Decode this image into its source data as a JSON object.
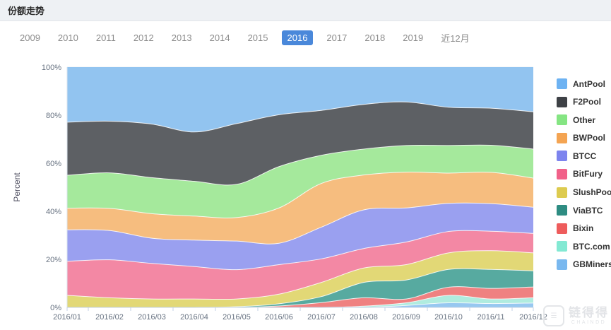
{
  "header": {
    "title": "份额走势"
  },
  "tabs": {
    "items": [
      "2009",
      "2010",
      "2011",
      "2012",
      "2013",
      "2014",
      "2015",
      "2016",
      "2017",
      "2018",
      "2019",
      "近12月"
    ],
    "selected": "2016"
  },
  "chart_data": {
    "type": "area",
    "stacked": true,
    "title": "份额走势",
    "xlabel": "",
    "ylabel": "Percent",
    "ylim": [
      0,
      100
    ],
    "ytick_labels": [
      "0%",
      "20%",
      "40%",
      "60%",
      "80%",
      "100%"
    ],
    "grid": true,
    "legend_position": "right",
    "x": [
      "2016/01",
      "2016/02",
      "2016/03",
      "2016/04",
      "2016/05",
      "2016/06",
      "2016/07",
      "2016/08",
      "2016/09",
      "2016/10",
      "2016/11",
      "2016/12"
    ],
    "series": [
      {
        "name": "AntPool",
        "color": "#6db2f2",
        "fill": "#92c4f0",
        "values": [
          22.9,
          22.5,
          23.7,
          27.0,
          23.5,
          19.8,
          18.0,
          15.5,
          14.5,
          16.7,
          17.1,
          18.6
        ]
      },
      {
        "name": "F2Pool",
        "color": "#3e4146",
        "fill": "#5d6064",
        "values": [
          22.1,
          21.5,
          22.3,
          20.5,
          25.3,
          21.6,
          18.7,
          18.6,
          18.1,
          15.9,
          15.4,
          15.5
        ]
      },
      {
        "name": "Other",
        "color": "#85e583",
        "fill": "#a5e99c",
        "values": [
          13.7,
          14.8,
          15.0,
          14.5,
          13.8,
          17.2,
          11.7,
          10.8,
          11.1,
          11.5,
          11.3,
          12.1
        ]
      },
      {
        "name": "BWPool",
        "color": "#f4a452",
        "fill": "#f6bd7f",
        "values": [
          9.0,
          9.2,
          10.2,
          10.0,
          9.8,
          14.7,
          18.2,
          14.5,
          14.9,
          12.6,
          13.0,
          12.1
        ]
      },
      {
        "name": "BTCC",
        "color": "#7d84ee",
        "fill": "#9aa0f0",
        "values": [
          13.1,
          12.2,
          10.5,
          11.0,
          11.9,
          8.9,
          13.2,
          16.1,
          14.2,
          11.7,
          11.5,
          10.9
        ]
      },
      {
        "name": "BitFury",
        "color": "#f16189",
        "fill": "#f388a4",
        "values": [
          14.2,
          15.8,
          14.8,
          13.5,
          12.2,
          12.3,
          9.8,
          8.1,
          9.4,
          8.9,
          8.1,
          8.1
        ]
      },
      {
        "name": "SlushPool",
        "color": "#ddcb4f",
        "fill": "#e2d876",
        "values": [
          5.0,
          4.0,
          3.5,
          3.5,
          3.2,
          4.0,
          5.9,
          6.0,
          6.4,
          6.9,
          7.8,
          7.5
        ]
      },
      {
        "name": "ViaBTC",
        "color": "#2e8c82",
        "fill": "#57aaa0",
        "values": [
          0,
          0,
          0,
          0,
          0.3,
          0.9,
          2.5,
          6.4,
          7.9,
          7.4,
          7.9,
          6.7
        ]
      },
      {
        "name": "Bixin",
        "color": "#ee5c5c",
        "fill": "#ef8181",
        "values": [
          0,
          0,
          0,
          0,
          0,
          0.6,
          2.0,
          3.5,
          1.6,
          3.4,
          4.4,
          4.5
        ]
      },
      {
        "name": "BTC.com",
        "color": "#83e9d3",
        "fill": "#b0ecdf",
        "values": [
          0,
          0,
          0,
          0,
          0,
          0,
          0,
          0.5,
          1.1,
          3.1,
          1.9,
          2.2
        ]
      },
      {
        "name": "GBMiners",
        "color": "#79b8ef",
        "fill": "#97c8f0",
        "values": [
          0,
          0,
          0,
          0,
          0,
          0,
          0,
          0,
          0.8,
          1.9,
          1.6,
          1.8
        ]
      }
    ]
  },
  "axis_colors": {
    "grid": "#ebeef2",
    "axis_line": "#c3d2e4",
    "left_axis_line": "#dbe3ee",
    "tick_label": "#667180",
    "ylabel_color": "#556"
  },
  "watermark": {
    "logo_glyph": "☰",
    "name": "链得得",
    "subtitle": "CHAINDD"
  }
}
